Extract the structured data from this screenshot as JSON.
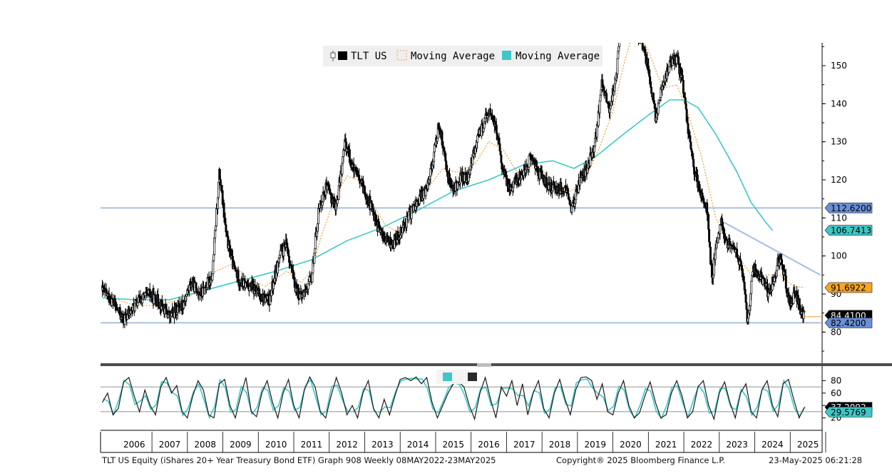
{
  "chart_data": {
    "type": "candlestick",
    "main_panel": {
      "legend": [
        {
          "label": "TLT US",
          "color": "#000000",
          "style": "candles"
        },
        {
          "label": "Moving Average",
          "color": "#f0a64a",
          "style": "dotted"
        },
        {
          "label": "Moving Average",
          "color": "#3cc8c8",
          "style": "solid"
        }
      ],
      "legend_position": "top-center",
      "yticks": [
        80,
        90,
        100,
        110,
        120,
        130,
        140,
        150
      ],
      "ylim": [
        72,
        156
      ],
      "horizontal_lines": [
        112.62,
        82.42
      ],
      "downtrend_line": {
        "from": [
          2023.0,
          109.5
        ],
        "to": [
          2025.85,
          95.0
        ]
      },
      "value_labels": [
        {
          "text": "112.6200",
          "value": 112.62,
          "bg": "#6a8fd6",
          "fg": "#000000"
        },
        {
          "text": "106.7413",
          "value": 106.7413,
          "bg": "#3cc8c8",
          "fg": "#000000"
        },
        {
          "text": "91.6922",
          "value": 91.6922,
          "bg": "#f5a623",
          "fg": "#000000"
        },
        {
          "text": "84.4100",
          "value": 84.41,
          "bg": "#000000",
          "fg": "#ffffff"
        },
        {
          "text": "82.4200",
          "value": 82.42,
          "bg": "#6a8fd6",
          "fg": "#000000"
        }
      ],
      "price_path": [
        [
          2005.6,
          91
        ],
        [
          2005.9,
          88
        ],
        [
          2006.2,
          83
        ],
        [
          2006.6,
          88
        ],
        [
          2006.9,
          90
        ],
        [
          2007.2,
          88
        ],
        [
          2007.5,
          84
        ],
        [
          2007.9,
          88
        ],
        [
          2008.1,
          93
        ],
        [
          2008.4,
          90
        ],
        [
          2008.7,
          95
        ],
        [
          2008.9,
          122
        ],
        [
          2009.1,
          105
        ],
        [
          2009.3,
          97
        ],
        [
          2009.5,
          93
        ],
        [
          2009.8,
          92
        ],
        [
          2010.0,
          90
        ],
        [
          2010.3,
          88
        ],
        [
          2010.6,
          100
        ],
        [
          2010.8,
          103
        ],
        [
          2011.0,
          93
        ],
        [
          2011.2,
          89
        ],
        [
          2011.5,
          94
        ],
        [
          2011.7,
          112
        ],
        [
          2011.9,
          118
        ],
        [
          2012.2,
          113
        ],
        [
          2012.45,
          130
        ],
        [
          2012.7,
          122
        ],
        [
          2012.9,
          119
        ],
        [
          2013.1,
          115
        ],
        [
          2013.4,
          107
        ],
        [
          2013.6,
          104
        ],
        [
          2013.8,
          103
        ],
        [
          2014.1,
          108
        ],
        [
          2014.4,
          113
        ],
        [
          2014.7,
          117
        ],
        [
          2014.9,
          124
        ],
        [
          2015.1,
          135
        ],
        [
          2015.3,
          123
        ],
        [
          2015.5,
          117
        ],
        [
          2015.7,
          121
        ],
        [
          2015.9,
          120
        ],
        [
          2016.15,
          130
        ],
        [
          2016.5,
          138
        ],
        [
          2016.7,
          134
        ],
        [
          2016.9,
          122
        ],
        [
          2017.1,
          118
        ],
        [
          2017.4,
          121
        ],
        [
          2017.7,
          126
        ],
        [
          2017.9,
          122
        ],
        [
          2018.2,
          118
        ],
        [
          2018.5,
          118
        ],
        [
          2018.7,
          117
        ],
        [
          2018.85,
          112
        ],
        [
          2019.0,
          118
        ],
        [
          2019.3,
          124
        ],
        [
          2019.5,
          130
        ],
        [
          2019.7,
          146
        ],
        [
          2019.9,
          138
        ],
        [
          2020.1,
          148
        ],
        [
          2020.25,
          165
        ],
        [
          2020.5,
          162
        ],
        [
          2020.8,
          156
        ],
        [
          2021.0,
          150
        ],
        [
          2021.2,
          136
        ],
        [
          2021.4,
          145
        ],
        [
          2021.6,
          150
        ],
        [
          2021.8,
          152
        ],
        [
          2021.95,
          146
        ],
        [
          2022.1,
          135
        ],
        [
          2022.3,
          122
        ],
        [
          2022.5,
          116
        ],
        [
          2022.65,
          113
        ],
        [
          2022.8,
          93
        ],
        [
          2022.9,
          103
        ],
        [
          2023.05,
          109
        ],
        [
          2023.2,
          104
        ],
        [
          2023.5,
          101
        ],
        [
          2023.65,
          96
        ],
        [
          2023.8,
          82
        ],
        [
          2023.95,
          97
        ],
        [
          2024.2,
          94
        ],
        [
          2024.4,
          90
        ],
        [
          2024.6,
          96
        ],
        [
          2024.7,
          100
        ],
        [
          2024.85,
          94
        ],
        [
          2025.0,
          87
        ],
        [
          2025.15,
          90
        ],
        [
          2025.3,
          86
        ],
        [
          2025.4,
          84.41
        ]
      ],
      "ma_orange": [
        [
          2005.6,
          90
        ],
        [
          2006.5,
          87
        ],
        [
          2007.0,
          87
        ],
        [
          2007.6,
          88
        ],
        [
          2008.2,
          90
        ],
        [
          2008.8,
          96
        ],
        [
          2009.3,
          98
        ],
        [
          2009.7,
          94
        ],
        [
          2010.2,
          92
        ],
        [
          2010.8,
          96
        ],
        [
          2011.2,
          93
        ],
        [
          2011.5,
          96
        ],
        [
          2011.8,
          106
        ],
        [
          2012.2,
          116
        ],
        [
          2012.5,
          121
        ],
        [
          2012.8,
          120
        ],
        [
          2013.2,
          114
        ],
        [
          2013.6,
          108
        ],
        [
          2014.0,
          106
        ],
        [
          2014.4,
          112
        ],
        [
          2014.8,
          118
        ],
        [
          2015.2,
          123
        ],
        [
          2015.6,
          122
        ],
        [
          2016.1,
          124
        ],
        [
          2016.5,
          130
        ],
        [
          2016.9,
          128
        ],
        [
          2017.3,
          122
        ],
        [
          2017.8,
          124
        ],
        [
          2018.3,
          120
        ],
        [
          2018.8,
          117
        ],
        [
          2019.2,
          120
        ],
        [
          2019.6,
          128
        ],
        [
          2020.0,
          138
        ],
        [
          2020.3,
          150
        ],
        [
          2020.6,
          160
        ],
        [
          2021.0,
          154
        ],
        [
          2021.4,
          144
        ],
        [
          2021.8,
          145
        ],
        [
          2022.1,
          138
        ],
        [
          2022.5,
          126
        ],
        [
          2022.9,
          110
        ],
        [
          2023.2,
          105
        ],
        [
          2023.6,
          99
        ],
        [
          2023.9,
          95
        ],
        [
          2024.3,
          95
        ],
        [
          2024.7,
          95
        ],
        [
          2025.1,
          92
        ],
        [
          2025.4,
          91.6922
        ]
      ],
      "ma_cyan": [
        [
          2005.6,
          89
        ],
        [
          2006.5,
          88.5
        ],
        [
          2007.5,
          88.5
        ],
        [
          2008.5,
          91
        ],
        [
          2009.5,
          93.5
        ],
        [
          2010.5,
          96
        ],
        [
          2011.5,
          99
        ],
        [
          2012.5,
          104
        ],
        [
          2013.5,
          107.5
        ],
        [
          2014.5,
          112
        ],
        [
          2015.5,
          117
        ],
        [
          2016.5,
          120
        ],
        [
          2017.5,
          124
        ],
        [
          2018.3,
          125
        ],
        [
          2018.9,
          123
        ],
        [
          2019.5,
          126
        ],
        [
          2020.3,
          132
        ],
        [
          2021.0,
          137
        ],
        [
          2021.6,
          141
        ],
        [
          2022.0,
          141
        ],
        [
          2022.4,
          139
        ],
        [
          2022.9,
          132
        ],
        [
          2023.5,
          122
        ],
        [
          2023.9,
          114
        ],
        [
          2024.3,
          109
        ],
        [
          2024.5,
          106.7413
        ]
      ]
    },
    "lower_panel": {
      "yticks": [
        20,
        40,
        60,
        80
      ],
      "ylim": [
        0,
        100
      ],
      "reference_lines": [
        70,
        30
      ],
      "value_labels": [
        {
          "text": "37.2092",
          "value": 37.2092,
          "bg": "#000000",
          "fg": "#ffffff"
        },
        {
          "text": "29.5769",
          "value": 29.5769,
          "bg": "#3cc8c8",
          "fg": "#000000"
        }
      ],
      "oscillator_black": [
        [
          2005.6,
          45
        ],
        [
          2005.75,
          60
        ],
        [
          2005.9,
          25
        ],
        [
          2006.05,
          35
        ],
        [
          2006.2,
          78
        ],
        [
          2006.35,
          85
        ],
        [
          2006.5,
          55
        ],
        [
          2006.65,
          30
        ],
        [
          2006.8,
          65
        ],
        [
          2006.95,
          40
        ],
        [
          2007.1,
          25
        ],
        [
          2007.25,
          70
        ],
        [
          2007.4,
          85
        ],
        [
          2007.55,
          60
        ],
        [
          2007.7,
          72
        ],
        [
          2007.85,
          30
        ],
        [
          2008.0,
          20
        ],
        [
          2008.15,
          55
        ],
        [
          2008.3,
          80
        ],
        [
          2008.45,
          65
        ],
        [
          2008.6,
          25
        ],
        [
          2008.75,
          20
        ],
        [
          2008.9,
          75
        ],
        [
          2009.05,
          82
        ],
        [
          2009.2,
          40
        ],
        [
          2009.35,
          20
        ],
        [
          2009.5,
          55
        ],
        [
          2009.65,
          85
        ],
        [
          2009.8,
          30
        ],
        [
          2009.95,
          22
        ],
        [
          2010.1,
          60
        ],
        [
          2010.25,
          80
        ],
        [
          2010.4,
          45
        ],
        [
          2010.55,
          20
        ],
        [
          2010.7,
          60
        ],
        [
          2010.85,
          82
        ],
        [
          2011.0,
          40
        ],
        [
          2011.15,
          20
        ],
        [
          2011.3,
          65
        ],
        [
          2011.45,
          86
        ],
        [
          2011.6,
          70
        ],
        [
          2011.75,
          30
        ],
        [
          2011.9,
          20
        ],
        [
          2012.05,
          55
        ],
        [
          2012.2,
          85
        ],
        [
          2012.35,
          60
        ],
        [
          2012.5,
          25
        ],
        [
          2012.65,
          40
        ],
        [
          2012.8,
          20
        ],
        [
          2012.95,
          60
        ],
        [
          2013.1,
          80
        ],
        [
          2013.25,
          35
        ],
        [
          2013.4,
          20
        ],
        [
          2013.55,
          50
        ],
        [
          2013.7,
          25
        ],
        [
          2013.85,
          55
        ],
        [
          2014.0,
          82
        ],
        [
          2014.15,
          85
        ],
        [
          2014.3,
          80
        ],
        [
          2014.45,
          86
        ],
        [
          2014.6,
          75
        ],
        [
          2014.75,
          85
        ],
        [
          2014.9,
          45
        ],
        [
          2015.05,
          20
        ],
        [
          2015.2,
          40
        ],
        [
          2015.35,
          60
        ],
        [
          2015.5,
          75
        ],
        [
          2015.65,
          78
        ],
        [
          2015.8,
          70
        ],
        [
          2015.95,
          40
        ],
        [
          2016.1,
          18
        ],
        [
          2016.25,
          60
        ],
        [
          2016.4,
          85
        ],
        [
          2016.55,
          50
        ],
        [
          2016.7,
          20
        ],
        [
          2016.85,
          70
        ],
        [
          2017.0,
          55
        ],
        [
          2017.15,
          80
        ],
        [
          2017.3,
          40
        ],
        [
          2017.45,
          75
        ],
        [
          2017.6,
          25
        ],
        [
          2017.75,
          60
        ],
        [
          2017.9,
          80
        ],
        [
          2018.05,
          35
        ],
        [
          2018.2,
          20
        ],
        [
          2018.35,
          60
        ],
        [
          2018.5,
          82
        ],
        [
          2018.65,
          50
        ],
        [
          2018.8,
          25
        ],
        [
          2018.95,
          65
        ],
        [
          2019.1,
          85
        ],
        [
          2019.25,
          86
        ],
        [
          2019.4,
          80
        ],
        [
          2019.55,
          50
        ],
        [
          2019.7,
          75
        ],
        [
          2019.85,
          30
        ],
        [
          2020.0,
          25
        ],
        [
          2020.15,
          60
        ],
        [
          2020.3,
          80
        ],
        [
          2020.45,
          40
        ],
        [
          2020.6,
          20
        ],
        [
          2020.75,
          28
        ],
        [
          2020.9,
          55
        ],
        [
          2021.05,
          78
        ],
        [
          2021.2,
          45
        ],
        [
          2021.35,
          20
        ],
        [
          2021.5,
          25
        ],
        [
          2021.65,
          60
        ],
        [
          2021.8,
          80
        ],
        [
          2021.95,
          55
        ],
        [
          2022.1,
          20
        ],
        [
          2022.25,
          30
        ],
        [
          2022.4,
          70
        ],
        [
          2022.55,
          80
        ],
        [
          2022.7,
          40
        ],
        [
          2022.85,
          18
        ],
        [
          2023.0,
          60
        ],
        [
          2023.15,
          78
        ],
        [
          2023.3,
          45
        ],
        [
          2023.45,
          20
        ],
        [
          2023.6,
          60
        ],
        [
          2023.75,
          75
        ],
        [
          2023.9,
          30
        ],
        [
          2024.05,
          20
        ],
        [
          2024.2,
          65
        ],
        [
          2024.35,
          80
        ],
        [
          2024.5,
          40
        ],
        [
          2024.65,
          22
        ],
        [
          2024.8,
          75
        ],
        [
          2024.95,
          82
        ],
        [
          2025.1,
          50
        ],
        [
          2025.25,
          20
        ],
        [
          2025.4,
          37.2
        ]
      ]
    },
    "x_axis": {
      "labels": [
        "2006",
        "2007",
        "2008",
        "2009",
        "2010",
        "2011",
        "2012",
        "2013",
        "2014",
        "2015",
        "2016",
        "2017",
        "2018",
        "2019",
        "2020",
        "2021",
        "2022",
        "2023",
        "2024",
        "2025"
      ],
      "xlim": [
        2005.55,
        2025.9
      ]
    },
    "grid": false
  },
  "footer": {
    "left": "TLT US Equity (iShares 20+ Year Treasury Bond ETF) Graph 908  Weekly 08MAY2022-23MAY2025",
    "center": "Copyright® 2025 Bloomberg Finance L.P.",
    "right": "23-May-2025 06:21:28"
  }
}
